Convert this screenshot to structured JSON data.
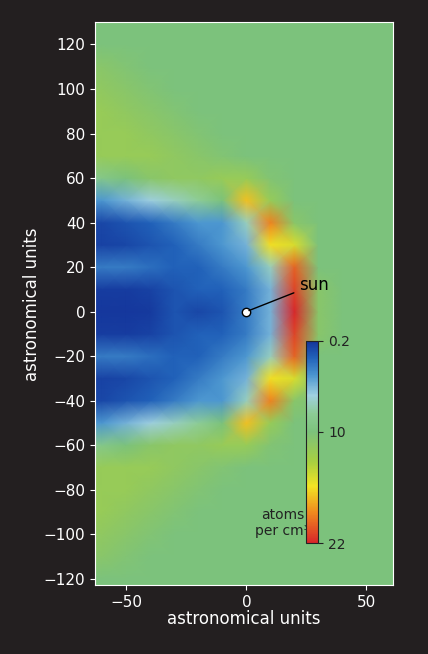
{
  "chart_data": {
    "type": "heatmap",
    "xlabel": "astronomical units",
    "ylabel": "astronomical units",
    "xlim": [
      -63,
      61
    ],
    "ylim": [
      -123,
      130
    ],
    "xticks": [
      {
        "value": -50,
        "label": "−50"
      },
      0,
      50
    ],
    "yticks": [
      {
        "value": -120,
        "label": "−120"
      },
      {
        "value": -100,
        "label": "−100"
      },
      {
        "value": -80,
        "label": "−80"
      },
      {
        "value": -60,
        "label": "−60"
      },
      {
        "value": -40,
        "label": "−40"
      },
      {
        "value": -20,
        "label": "−20"
      },
      0,
      20,
      40,
      60,
      80,
      100,
      120
    ],
    "x": [
      -70,
      -60,
      -50,
      -40,
      -30,
      -20,
      -10,
      0,
      10,
      20,
      30,
      40,
      50,
      60,
      70
    ],
    "y": [
      -130,
      -120,
      -110,
      -100,
      -90,
      -80,
      -70,
      -60,
      -50,
      -40,
      -30,
      -20,
      -10,
      0,
      10,
      20,
      30,
      40,
      50,
      60,
      70,
      80,
      90,
      100,
      110,
      120,
      130
    ],
    "cells": [
      [
        10,
        10,
        10,
        10,
        10,
        10,
        10,
        10,
        10,
        10,
        10,
        10,
        10,
        10,
        10
      ],
      [
        10,
        10,
        10,
        10,
        10,
        10,
        10,
        10,
        10,
        10,
        10,
        10,
        10,
        10,
        10
      ],
      [
        11,
        11,
        10.5,
        10,
        10,
        10,
        10,
        10,
        10,
        10,
        10,
        10,
        10,
        10,
        10
      ],
      [
        11.5,
        11.5,
        11,
        10.5,
        10,
        10,
        10,
        10,
        10,
        10,
        10,
        10,
        10,
        10,
        10
      ],
      [
        12,
        12,
        11.5,
        11,
        10.5,
        10,
        10,
        10,
        10,
        10,
        10,
        10,
        10,
        10,
        10
      ],
      [
        12,
        12,
        12,
        11.5,
        11,
        10.5,
        10,
        10,
        10,
        10,
        10,
        10,
        10,
        10,
        10
      ],
      [
        11.5,
        12,
        12,
        12,
        11.5,
        11,
        10.5,
        10,
        10,
        10,
        10,
        10,
        10,
        10,
        10
      ],
      [
        8,
        9,
        10,
        11,
        11.5,
        11.5,
        12,
        12,
        10.5,
        10,
        10,
        10,
        10,
        10,
        10
      ],
      [
        4,
        4,
        5,
        6,
        7,
        8,
        10,
        17,
        12,
        10,
        10,
        10,
        10,
        10,
        10
      ],
      [
        1,
        1,
        1.5,
        2,
        3,
        4,
        4,
        7,
        19,
        11,
        10,
        10,
        10,
        10,
        10
      ],
      [
        0.8,
        0.8,
        1,
        1.5,
        2,
        3,
        4,
        5,
        16,
        15,
        10,
        10,
        10,
        10,
        10
      ],
      [
        3,
        3,
        3,
        2.5,
        2,
        2,
        3,
        4,
        7,
        20,
        10,
        10,
        10,
        10,
        10
      ],
      [
        0.6,
        0.6,
        0.6,
        0.8,
        1.5,
        2,
        2,
        3,
        5,
        21,
        11,
        10,
        10,
        10,
        10
      ],
      [
        0.4,
        0.4,
        0.4,
        0.5,
        1.5,
        1,
        1.5,
        3,
        5,
        22,
        11,
        10,
        10,
        10,
        10
      ],
      [
        0.6,
        0.6,
        0.6,
        0.8,
        1.5,
        2,
        2,
        3,
        5,
        21,
        11,
        10,
        10,
        10,
        10
      ],
      [
        3,
        3,
        3,
        2.5,
        2,
        2,
        3,
        4,
        7,
        20,
        10,
        10,
        10,
        10,
        10
      ],
      [
        0.8,
        0.8,
        1,
        1.5,
        2,
        3,
        4,
        5,
        16,
        15,
        10,
        10,
        10,
        10,
        10
      ],
      [
        1,
        1,
        1.5,
        2,
        3,
        4,
        4,
        7,
        19,
        11,
        10,
        10,
        10,
        10,
        10
      ],
      [
        4,
        4,
        5,
        6,
        7,
        8,
        10,
        17,
        12,
        10,
        10,
        10,
        10,
        10,
        10
      ],
      [
        8,
        9,
        10,
        11,
        11.5,
        11.5,
        12,
        12,
        10.5,
        10,
        10,
        10,
        10,
        10,
        10
      ],
      [
        11.5,
        12,
        12,
        12,
        11.5,
        11,
        10.5,
        10,
        10,
        10,
        10,
        10,
        10,
        10,
        10
      ],
      [
        12,
        12,
        12,
        11.5,
        11,
        10.5,
        10,
        10,
        10,
        10,
        10,
        10,
        10,
        10,
        10
      ],
      [
        12,
        12,
        11.5,
        11,
        10.5,
        10,
        10,
        10,
        10,
        10,
        10,
        10,
        10,
        10,
        10
      ],
      [
        11.5,
        11.5,
        11,
        10.5,
        10,
        10,
        10,
        10,
        10,
        10,
        10,
        10,
        10,
        10,
        10
      ],
      [
        11,
        11,
        10.5,
        10,
        10,
        10,
        10,
        10,
        10,
        10,
        10,
        10,
        10,
        10,
        10
      ],
      [
        10,
        10,
        10,
        10,
        10,
        10,
        10,
        10,
        10,
        10,
        10,
        10,
        10,
        10,
        10
      ],
      [
        10,
        10,
        10,
        10,
        10,
        10,
        10,
        10,
        10,
        10,
        10,
        10,
        10,
        10,
        10
      ]
    ],
    "colorbar": {
      "label": "atoms\nper cm³",
      "range": [
        0.2,
        22
      ],
      "ticks": [
        0.2,
        10,
        22
      ]
    },
    "annotations": [
      {
        "text": "sun",
        "x": 0,
        "y": 0
      }
    ]
  }
}
